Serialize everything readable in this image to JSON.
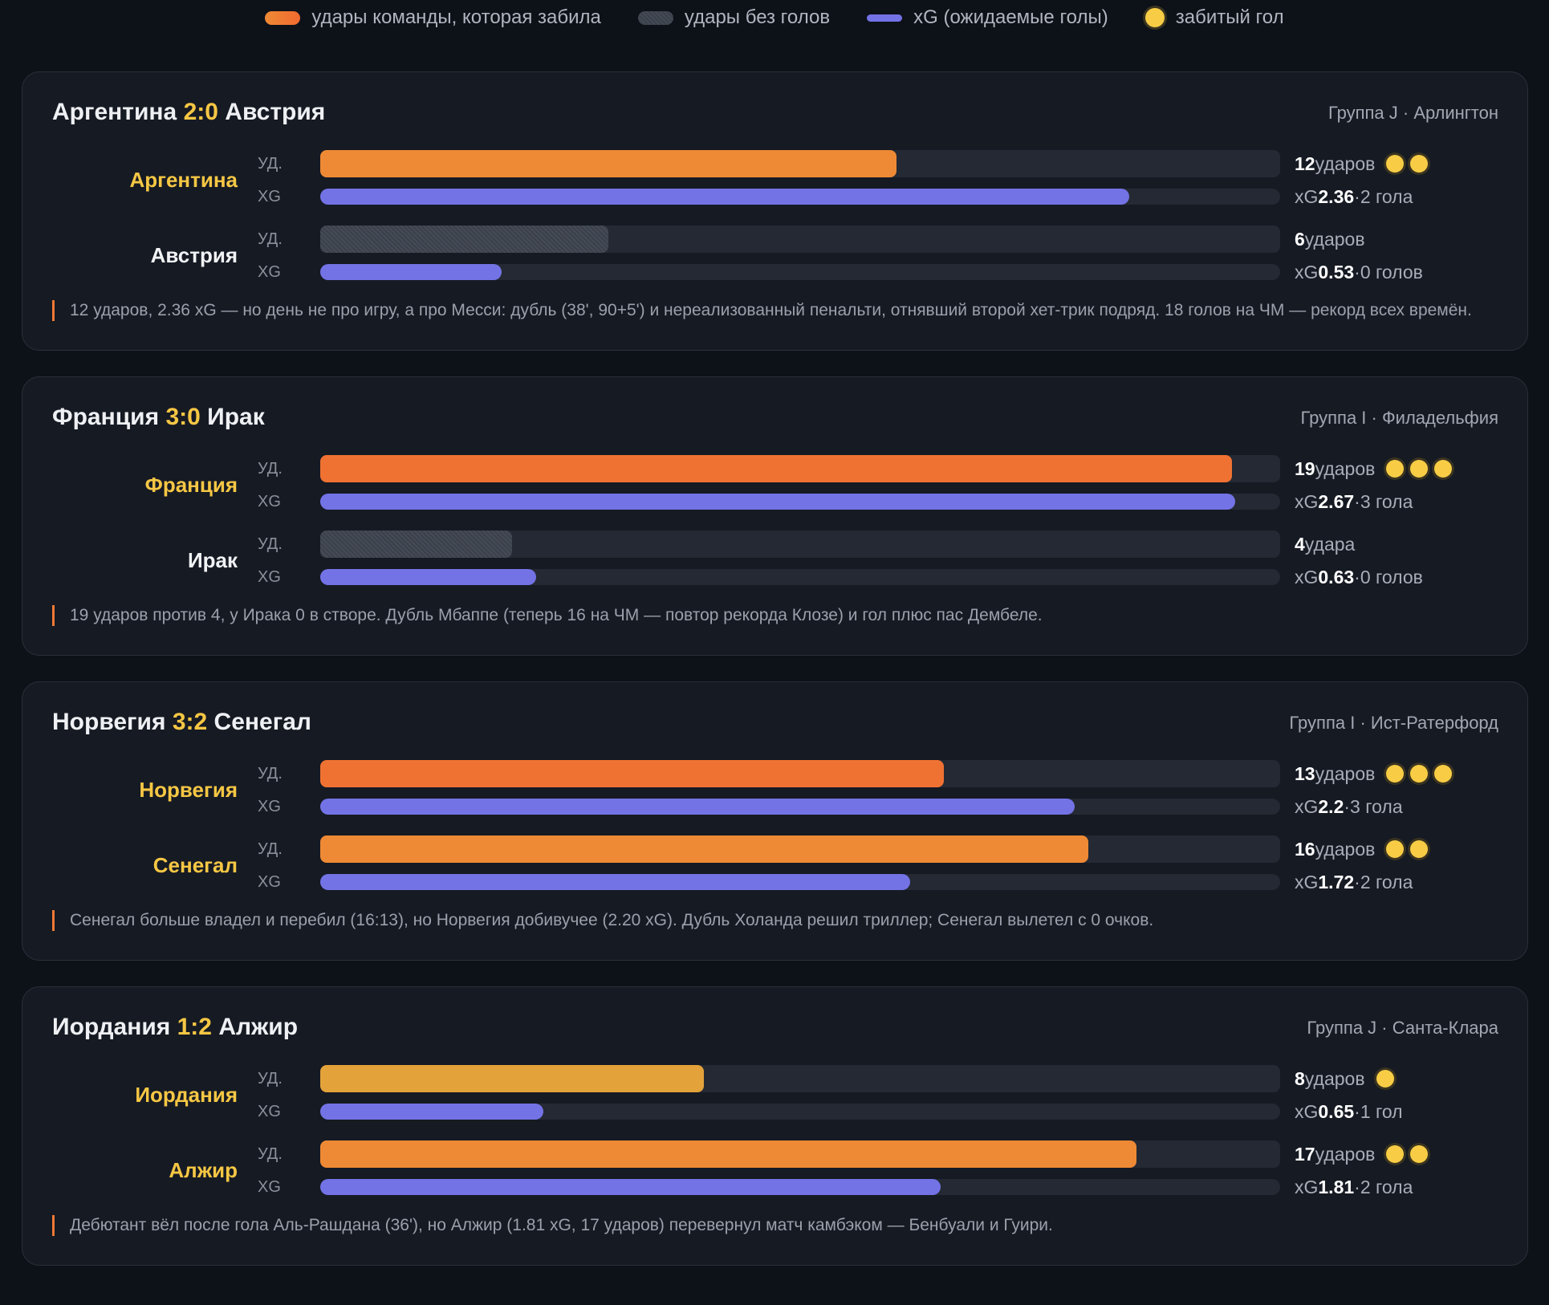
{
  "legend": {
    "items": [
      {
        "label": "удары команды, которая забила",
        "color": "#ee8a35"
      },
      {
        "label": "удары без голов",
        "color": "#3b404b"
      },
      {
        "label": "xG (ожидаемые голы)",
        "color": "#7373e6"
      },
      {
        "label": "забитый гол",
        "color": "#f8cd45"
      }
    ]
  },
  "scales": {
    "shots_lim": [
      0,
      20
    ],
    "xg_lim": [
      0,
      2.8
    ]
  },
  "row_labels": {
    "shots": "УД.",
    "xg": "XG"
  },
  "xg_prefix": "xG",
  "separator": "·",
  "xg_color": "#7373e6",
  "goal_color": "#f8cd45",
  "highlight_color": "#f6c744",
  "matches": [
    {
      "home": "Аргентина",
      "score": "2:0",
      "away": "Австрия",
      "meta": "Группа J · Арлингтон",
      "note": "12 ударов, 2.36 xG — но день не про игру, а про Месси: дубль (38', 90+5') и нереализованный пенальти, отнявший второй хет-трик подряд. 18 голов на ЧМ — рекорд всех времён.",
      "teams": [
        {
          "name": "Аргентина",
          "highlight": true,
          "shots": 12,
          "shots_word": "ударов",
          "color": "#ee8a35",
          "xg": 2.36,
          "goals": 2,
          "goals_label": "2 гола"
        },
        {
          "name": "Австрия",
          "highlight": false,
          "shots": 6,
          "shots_word": "ударов",
          "color": "#3b404b",
          "xg": 0.53,
          "goals": 0,
          "goals_label": "0 голов"
        }
      ]
    },
    {
      "home": "Франция",
      "score": "3:0",
      "away": "Ирак",
      "meta": "Группа I · Филадельфия",
      "note": "19 ударов против 4, у Ирака 0 в створе. Дубль Мбаппе (теперь 16 на ЧМ — повтор рекорда Клозе) и гол плюс пас Дембеле.",
      "teams": [
        {
          "name": "Франция",
          "highlight": true,
          "shots": 19,
          "shots_word": "ударов",
          "color": "#f07232",
          "xg": 2.67,
          "goals": 3,
          "goals_label": "3 гола"
        },
        {
          "name": "Ирак",
          "highlight": false,
          "shots": 4,
          "shots_word": "удара",
          "color": "#3b404b",
          "xg": 0.63,
          "goals": 0,
          "goals_label": "0 голов"
        }
      ]
    },
    {
      "home": "Норвегия",
      "score": "3:2",
      "away": "Сенегал",
      "meta": "Группа I · Ист-Ратерфорд",
      "note": "Сенегал больше владел и перебил (16:13), но Норвегия добивучее (2.20 xG). Дубль Холанда решил триллер; Сенегал вылетел с 0 очков.",
      "teams": [
        {
          "name": "Норвегия",
          "highlight": true,
          "shots": 13,
          "shots_word": "ударов",
          "color": "#f07232",
          "xg": 2.2,
          "goals": 3,
          "goals_label": "3 гола"
        },
        {
          "name": "Сенегал",
          "highlight": true,
          "shots": 16,
          "shots_word": "ударов",
          "color": "#ee8a35",
          "xg": 1.72,
          "goals": 2,
          "goals_label": "2 гола"
        }
      ]
    },
    {
      "home": "Иордания",
      "score": "1:2",
      "away": "Алжир",
      "meta": "Группа J · Санта-Клара",
      "note": "Дебютант вёл после гола Аль-Рашдана (36'), но Алжир (1.81 xG, 17 ударов) перевернул матч камбэком — Бенбуали и Гуири.",
      "teams": [
        {
          "name": "Иордания",
          "highlight": true,
          "shots": 8,
          "shots_word": "ударов",
          "color": "#e3a23a",
          "xg": 0.65,
          "goals": 1,
          "goals_label": "1 гол"
        },
        {
          "name": "Алжир",
          "highlight": true,
          "shots": 17,
          "shots_word": "ударов",
          "color": "#ee8a35",
          "xg": 1.81,
          "goals": 2,
          "goals_label": "2 гола"
        }
      ]
    }
  ]
}
